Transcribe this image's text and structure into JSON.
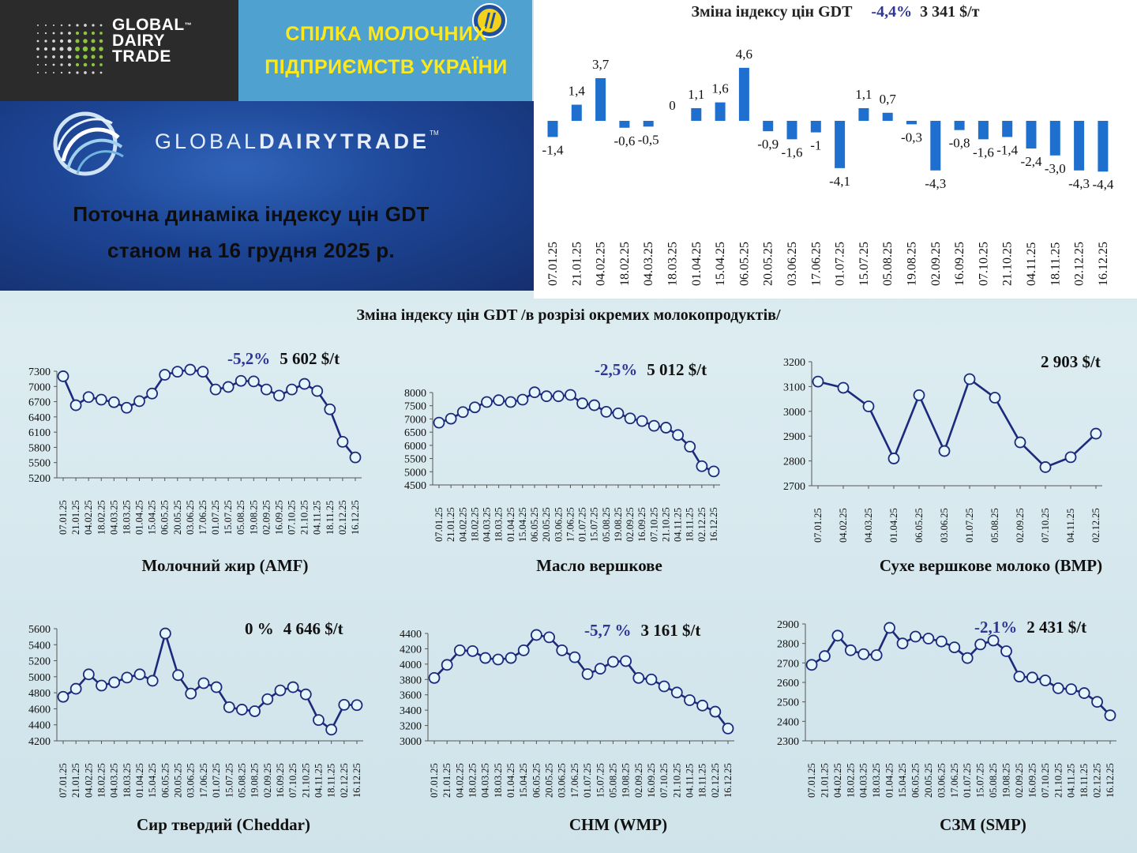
{
  "header": {
    "gdt_logo_lines": [
      "GLOBAL",
      "DAIRY",
      "TRADE"
    ],
    "gdt_logo_tm": "™",
    "union_title_line1": "СПІЛКА МОЛОЧНИХ",
    "union_title_line2": "ПІДПРИЄМСТВ УКРАЇНИ",
    "hero_brand_light": "GLOBAL",
    "hero_brand_bold": "DAIRYTRADE",
    "hero_brand_tm": "TM",
    "hero_title_line1": "Поточна динаміка індексу цін GDT",
    "hero_title_line2": "станом на 16 грудня 2025 р."
  },
  "colors": {
    "bar": "#1f6fcf",
    "line": "#1b2a7a",
    "marker_fill": "#e4f5fb",
    "marker_stroke": "#1b2a7a",
    "change_text": "#2f3592"
  },
  "section_title": "Зміна індексу цін GDT /в розрізі окремих молокопродуктів/",
  "chart_data": [
    {
      "id": "gdt-index",
      "type": "bar",
      "title": "Зміна індексу цін GDT",
      "change": "-4,4%",
      "price": "3 341 $/т",
      "categories": [
        "07.01.25",
        "21.01.25",
        "04.02.25",
        "18.02.25",
        "04.03.25",
        "18.03.25",
        "01.04.25",
        "15.04.25",
        "06.05.25",
        "20.05.25",
        "03.06.25",
        "17.06.25",
        "01.07.25",
        "15.07.25",
        "05.08.25",
        "19.08.25",
        "02.09.25",
        "16.09.25",
        "07.10.25",
        "21.10.25",
        "04.11.25",
        "18.11.25",
        "02.12.25",
        "16.12.25"
      ],
      "values": [
        -1.4,
        1.4,
        3.7,
        -0.6,
        -0.5,
        0,
        1.1,
        1.6,
        4.6,
        -0.9,
        -1.6,
        -1,
        -4.1,
        1.1,
        0.7,
        -0.3,
        -4.3,
        -0.8,
        -1.6,
        -1.4,
        -2.4,
        -3.0,
        -4.3,
        -4.4
      ],
      "value_labels": [
        "-1,4",
        "1,4",
        "3,7",
        "-0,6",
        "-0,5",
        "0",
        "1,1",
        "1,6",
        "4,6",
        "-0,9",
        "-1,6",
        "-1",
        "-4,1",
        "1,1",
        "0,7",
        "-0,3",
        "-4,3",
        "-0,8",
        "-1,6",
        "-1,4",
        "-2,4",
        "-3,0",
        "-4,3",
        "-4,4"
      ]
    },
    {
      "id": "amf",
      "type": "line",
      "title": "Молочний жир (AMF)",
      "change": "-5,2%",
      "price": "5 602 $/t",
      "ylim": [
        5200,
        7300
      ],
      "yticks": [
        5200,
        5500,
        5800,
        6100,
        6400,
        6700,
        7000,
        7300
      ],
      "categories": [
        "07.01.25",
        "21.01.25",
        "04.02.25",
        "18.02.25",
        "04.03.25",
        "18.03.25",
        "01.04.25",
        "15.04.25",
        "06.05.25",
        "20.05.25",
        "03.06.25",
        "17.06.25",
        "01.07.25",
        "15.07.25",
        "05.08.25",
        "19.08.25",
        "02.09.25",
        "16.09.25",
        "07.10.25",
        "21.10.25",
        "04.11.25",
        "18.11.25",
        "02.12.25",
        "16.12.25"
      ],
      "values": [
        7200,
        6630,
        6790,
        6740,
        6690,
        6580,
        6710,
        6860,
        7230,
        7290,
        7330,
        7290,
        6940,
        6990,
        7110,
        7100,
        6940,
        6820,
        6940,
        7050,
        6910,
        6550,
        5910,
        5602
      ]
    },
    {
      "id": "butter",
      "type": "line",
      "title": "Масло вершкове",
      "change": "-2,5%",
      "price": "5 012 $/t",
      "ylim": [
        4500,
        8000
      ],
      "yticks": [
        4500,
        5000,
        5500,
        6000,
        6500,
        7000,
        7500,
        8000
      ],
      "categories": [
        "07.01.25",
        "21.01.25",
        "04.02.25",
        "18.02.25",
        "04.03.25",
        "18.03.25",
        "01.04.25",
        "15.04.25",
        "06.05.25",
        "20.05.25",
        "03.06.25",
        "17.06.25",
        "01.07.25",
        "15.07.25",
        "05.08.25",
        "19.08.25",
        "02.09.25",
        "16.09.25",
        "07.10.25",
        "21.10.25",
        "04.11.25",
        "18.11.25",
        "02.12.25",
        "16.12.25"
      ],
      "values": [
        6860,
        7010,
        7260,
        7440,
        7640,
        7710,
        7640,
        7730,
        8010,
        7860,
        7860,
        7910,
        7590,
        7520,
        7270,
        7210,
        7020,
        6920,
        6740,
        6670,
        6390,
        5950,
        5210,
        5012
      ]
    },
    {
      "id": "bmp",
      "type": "line",
      "title": "Сухе вершкове молоко (BMP)",
      "change": "",
      "price": "2 903 $/t",
      "ylim": [
        2700,
        3200
      ],
      "yticks": [
        2700,
        2800,
        2900,
        3000,
        3100,
        3200
      ],
      "categories": [
        "07.01.25",
        "04.02.25",
        "04.03.25",
        "01.04.25",
        "06.05.25",
        "03.06.25",
        "01.07.25",
        "05.08.25",
        "02.09.25",
        "07.10.25",
        "04.11.25",
        "02.12.25"
      ],
      "values": [
        3120,
        3095,
        3020,
        2810,
        3065,
        2840,
        3130,
        3055,
        2875,
        2775,
        2815,
        2910
      ]
    },
    {
      "id": "cheddar",
      "type": "line",
      "title": "Сир твердий (Cheddar)",
      "change": "0 %",
      "price": "4 646 $/t",
      "ylim": [
        4200,
        5600
      ],
      "yticks": [
        4200,
        4400,
        4600,
        4800,
        5000,
        5200,
        5400,
        5600
      ],
      "categories": [
        "07.01.25",
        "21.01.25",
        "04.02.25",
        "18.02.25",
        "04.03.25",
        "18.03.25",
        "01.04.25",
        "15.04.25",
        "06.05.25",
        "20.05.25",
        "03.06.25",
        "17.06.25",
        "01.07.25",
        "15.07.25",
        "05.08.25",
        "19.08.25",
        "02.09.25",
        "16.09.25",
        "07.10.25",
        "21.10.25",
        "04.11.25",
        "18.11.25",
        "02.12.25",
        "16.12.25"
      ],
      "values": [
        4750,
        4850,
        5030,
        4890,
        4930,
        4990,
        5030,
        4950,
        5540,
        5020,
        4790,
        4920,
        4870,
        4620,
        4590,
        4570,
        4720,
        4830,
        4870,
        4780,
        4460,
        4340,
        4650,
        4646
      ]
    },
    {
      "id": "wmp",
      "type": "line",
      "title": "СНМ (WMP)",
      "change": "-5,7 %",
      "price": "3 161 $/t",
      "ylim": [
        3000,
        4400
      ],
      "yticks": [
        3000,
        3200,
        3400,
        3600,
        3800,
        4000,
        4200,
        4400
      ],
      "categories": [
        "07.01.25",
        "21.01.25",
        "04.02.25",
        "18.02.25",
        "04.03.25",
        "18.03.25",
        "01.04.25",
        "15.04.25",
        "06.05.25",
        "20.05.25",
        "03.06.25",
        "17.06.25",
        "01.07.25",
        "15.07.25",
        "05.08.25",
        "19.08.25",
        "02.09.25",
        "16.09.25",
        "07.10.25",
        "21.10.25",
        "04.11.25",
        "18.11.25",
        "02.12.25",
        "16.12.25"
      ],
      "values": [
        3820,
        3990,
        4180,
        4170,
        4080,
        4060,
        4080,
        4180,
        4380,
        4350,
        4180,
        4090,
        3870,
        3940,
        4030,
        4040,
        3820,
        3800,
        3710,
        3630,
        3530,
        3460,
        3380,
        3161
      ]
    },
    {
      "id": "smp",
      "type": "line",
      "title": "СЗМ (SMP)",
      "change": "-2,1%",
      "price": "2 431 $/t",
      "ylim": [
        2300,
        2900
      ],
      "yticks": [
        2300,
        2400,
        2500,
        2600,
        2700,
        2800,
        2900
      ],
      "categories": [
        "07.01.25",
        "21.01.25",
        "04.02.25",
        "18.02.25",
        "04.03.25",
        "18.03.25",
        "01.04.25",
        "15.04.25",
        "06.05.25",
        "20.05.25",
        "03.06.25",
        "17.06.25",
        "01.07.25",
        "15.07.25",
        "05.08.25",
        "19.08.25",
        "02.09.25",
        "16.09.25",
        "07.10.25",
        "21.10.25",
        "04.11.25",
        "18.11.25",
        "02.12.25",
        "16.12.25"
      ],
      "values": [
        2690,
        2735,
        2840,
        2765,
        2745,
        2740,
        2880,
        2800,
        2835,
        2825,
        2810,
        2780,
        2725,
        2795,
        2815,
        2760,
        2630,
        2625,
        2610,
        2570,
        2565,
        2545,
        2500,
        2431
      ]
    }
  ]
}
